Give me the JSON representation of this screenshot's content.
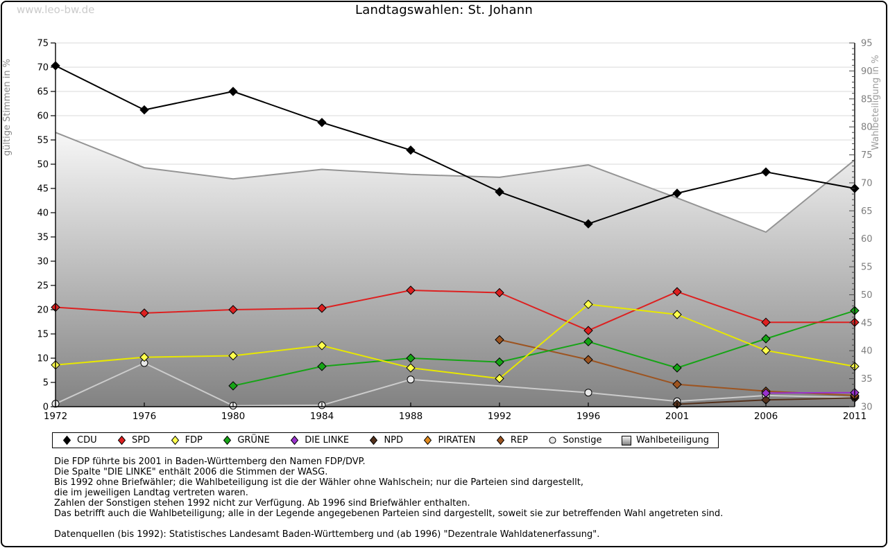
{
  "watermark": "www.leo-bw.de",
  "title": "Landtagswahlen: St. Johann",
  "chart_data": {
    "type": "line",
    "title": "Landtagswahlen: St. Johann",
    "categories": [
      "1972",
      "1976",
      "1980",
      "1984",
      "1988",
      "1992",
      "1996",
      "2001",
      "2006",
      "2011"
    ],
    "left_axis": {
      "label": "gültige Stimmen in %",
      "min": 0,
      "max": 75,
      "tick_step": 5,
      "ticks": [
        0,
        5,
        10,
        15,
        20,
        25,
        30,
        35,
        40,
        45,
        50,
        55,
        60,
        65,
        70,
        75
      ]
    },
    "right_axis": {
      "label": "Wahlbeteiligung in %",
      "min": 30,
      "max": 95,
      "tick_step": 5,
      "minor_step": 1,
      "ticks": [
        30,
        35,
        40,
        45,
        50,
        55,
        60,
        65,
        70,
        75,
        80,
        85,
        90,
        95
      ]
    },
    "grid": "horizontal gridlines every 5 (left axis), no vertical gridlines",
    "legend_position": "bottom",
    "series": [
      {
        "key": "cdu",
        "label": "CDU",
        "color": "#000000",
        "marker": "diamond",
        "axis": "left",
        "type": "line",
        "z": 10,
        "values": [
          70.3,
          61.2,
          65.0,
          58.6,
          52.9,
          44.3,
          37.7,
          44.0,
          48.4,
          45.0
        ]
      },
      {
        "key": "spd",
        "label": "SPD",
        "color": "#dd2020",
        "marker": "diamond",
        "axis": "left",
        "type": "line",
        "z": 8,
        "values": [
          20.5,
          19.3,
          20.0,
          20.3,
          24.0,
          23.5,
          15.7,
          23.7,
          17.4,
          17.4
        ]
      },
      {
        "key": "fdp",
        "label": "FDP",
        "color": "#e8e800",
        "marker_fill": "#ffff4d",
        "marker": "diamond",
        "axis": "left",
        "type": "line",
        "z": 9,
        "values": [
          8.6,
          10.2,
          10.5,
          12.6,
          8.0,
          5.8,
          21.1,
          19.0,
          11.6,
          8.3
        ]
      },
      {
        "key": "gruene",
        "label": "GRÜNE",
        "color": "#16a416",
        "marker": "diamond",
        "axis": "left",
        "type": "line",
        "z": 7,
        "values": [
          null,
          null,
          4.3,
          8.3,
          10.0,
          9.2,
          13.4,
          8.0,
          14.0,
          19.8
        ]
      },
      {
        "key": "die-linke",
        "label": "DIE LINKE",
        "color": "#9932cc",
        "marker": "diamond",
        "axis": "left",
        "type": "line",
        "z": 6,
        "values": [
          null,
          null,
          null,
          null,
          null,
          null,
          null,
          null,
          2.8,
          2.9
        ]
      },
      {
        "key": "npd",
        "label": "NPD",
        "color": "#54311c",
        "marker": "diamond",
        "axis": "left",
        "type": "line",
        "z": 3,
        "values": [
          null,
          null,
          null,
          null,
          null,
          null,
          null,
          0.5,
          1.4,
          1.8
        ]
      },
      {
        "key": "piraten",
        "label": "PIRATEN",
        "color": "#e08a1e",
        "marker": "diamond",
        "axis": "left",
        "type": "line",
        "z": 4,
        "values": [
          null,
          null,
          null,
          null,
          null,
          null,
          null,
          null,
          null,
          2.1
        ]
      },
      {
        "key": "rep",
        "label": "REP",
        "color": "#9d5420",
        "marker": "diamond",
        "axis": "left",
        "type": "line",
        "z": 5,
        "values": [
          null,
          null,
          null,
          null,
          null,
          13.8,
          9.7,
          4.6,
          3.2,
          2.3
        ]
      },
      {
        "key": "sonstige",
        "label": "Sonstige",
        "color": "#cccccc",
        "marker_fill": "#e8e8e8",
        "marker": "circle",
        "axis": "left",
        "type": "line",
        "z": 2,
        "values": [
          0.6,
          9.0,
          0.2,
          0.3,
          5.6,
          null,
          2.9,
          1.1,
          2.3,
          1.9
        ]
      },
      {
        "key": "wahlbeteiligung",
        "label": "Wahlbeteiligung",
        "color": "#949494",
        "marker": "square-gradient",
        "axis": "right",
        "type": "area",
        "z": 1,
        "area_gradient_top": "#fafafa",
        "area_gradient_bottom": "#828282",
        "values": [
          79.0,
          72.7,
          70.7,
          72.4,
          71.5,
          71.0,
          73.2,
          67.3,
          61.2,
          74.1
        ]
      }
    ]
  },
  "footnotes": [
    "Die FDP führte bis 2001 in Baden-Württemberg den Namen FDP/DVP.",
    "Die Spalte \"DIE LINKE\" enthält 2006 die Stimmen der WASG.",
    "Bis 1992 ohne Briefwähler; die Wahlbeteiligung ist die der Wähler ohne Wahlschein; nur die Parteien sind dargestellt,",
    "die im jeweiligen Landtag vertreten waren.",
    "Zahlen der Sonstigen stehen 1992 nicht zur Verfügung. Ab 1996 sind Briefwähler enthalten.",
    "Das betrifft auch die Wahlbeteiligung; alle in der Legende angegebenen Parteien sind dargestellt, soweit sie zur betreffenden Wahl angetreten sind.",
    "",
    "Datenquellen (bis 1992): Statistisches Landesamt Baden-Württemberg und (ab 1996) \"Dezentrale Wahldatenerfassung\"."
  ]
}
